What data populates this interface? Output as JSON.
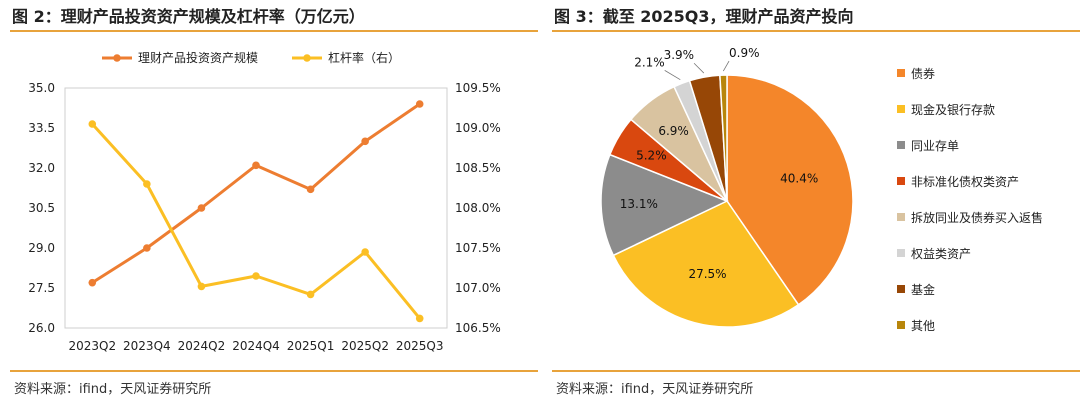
{
  "left": {
    "title": "图 2：理财产品投资资产规模及杠杆率（万亿元）",
    "source": "资料来源：ifind，天风证券研究所"
  },
  "right": {
    "title": "图 3：截至 2025Q3，理财产品资产投向",
    "source": "资料来源：ifind，天风证券研究所"
  },
  "colors": {
    "scale_line": "#ed7d31",
    "leverage_line": "#fbbf24",
    "rule": "#e8a33c"
  },
  "chart_data": [
    {
      "type": "line",
      "categories": [
        "2023Q2",
        "2023Q4",
        "2024Q2",
        "2024Q4",
        "2025Q1",
        "2025Q2",
        "2025Q3"
      ],
      "series": [
        {
          "name": "理财产品投资资产规模",
          "axis": "left",
          "values": [
            27.7,
            29.0,
            30.5,
            32.1,
            31.2,
            33.0,
            34.4
          ],
          "color": "#ed7d31"
        },
        {
          "name": "杠杆率（右）",
          "axis": "right",
          "values": [
            109.05,
            108.3,
            107.02,
            107.15,
            106.92,
            107.45,
            106.62
          ],
          "color": "#fbbf24"
        }
      ],
      "y_left": {
        "min": 26.0,
        "max": 35.0,
        "ticks": [
          "35.0",
          "33.5",
          "32.0",
          "30.5",
          "29.0",
          "27.5",
          "26.0"
        ]
      },
      "y_right": {
        "min": 106.5,
        "max": 109.5,
        "ticks": [
          "109.5%",
          "109.0%",
          "108.5%",
          "108.0%",
          "107.5%",
          "107.0%",
          "106.5%"
        ]
      },
      "legend_position": "top",
      "grid": false
    },
    {
      "type": "pie",
      "slices": [
        {
          "name": "债券",
          "value": 40.4,
          "label": "40.4%",
          "color": "#f4862a"
        },
        {
          "name": "现金及银行存款",
          "value": 27.5,
          "label": "27.5%",
          "color": "#fbbf24"
        },
        {
          "name": "同业存单",
          "value": 13.1,
          "label": "13.1%",
          "color": "#8c8c8c"
        },
        {
          "name": "非标准化债权类资产",
          "value": 5.2,
          "label": "5.2%",
          "color": "#d9480f"
        },
        {
          "name": "拆放同业及债券买入返售",
          "value": 6.9,
          "label": "6.9%",
          "color": "#d9c3a0"
        },
        {
          "name": "权益类资产",
          "value": 2.1,
          "label": "2.1%",
          "color": "#d4d4d4"
        },
        {
          "name": "基金",
          "value": 3.9,
          "label": "3.9%",
          "color": "#974706"
        },
        {
          "name": "其他",
          "value": 0.9,
          "label": "0.9%",
          "color": "#b8860b"
        }
      ],
      "legend_position": "right"
    }
  ]
}
